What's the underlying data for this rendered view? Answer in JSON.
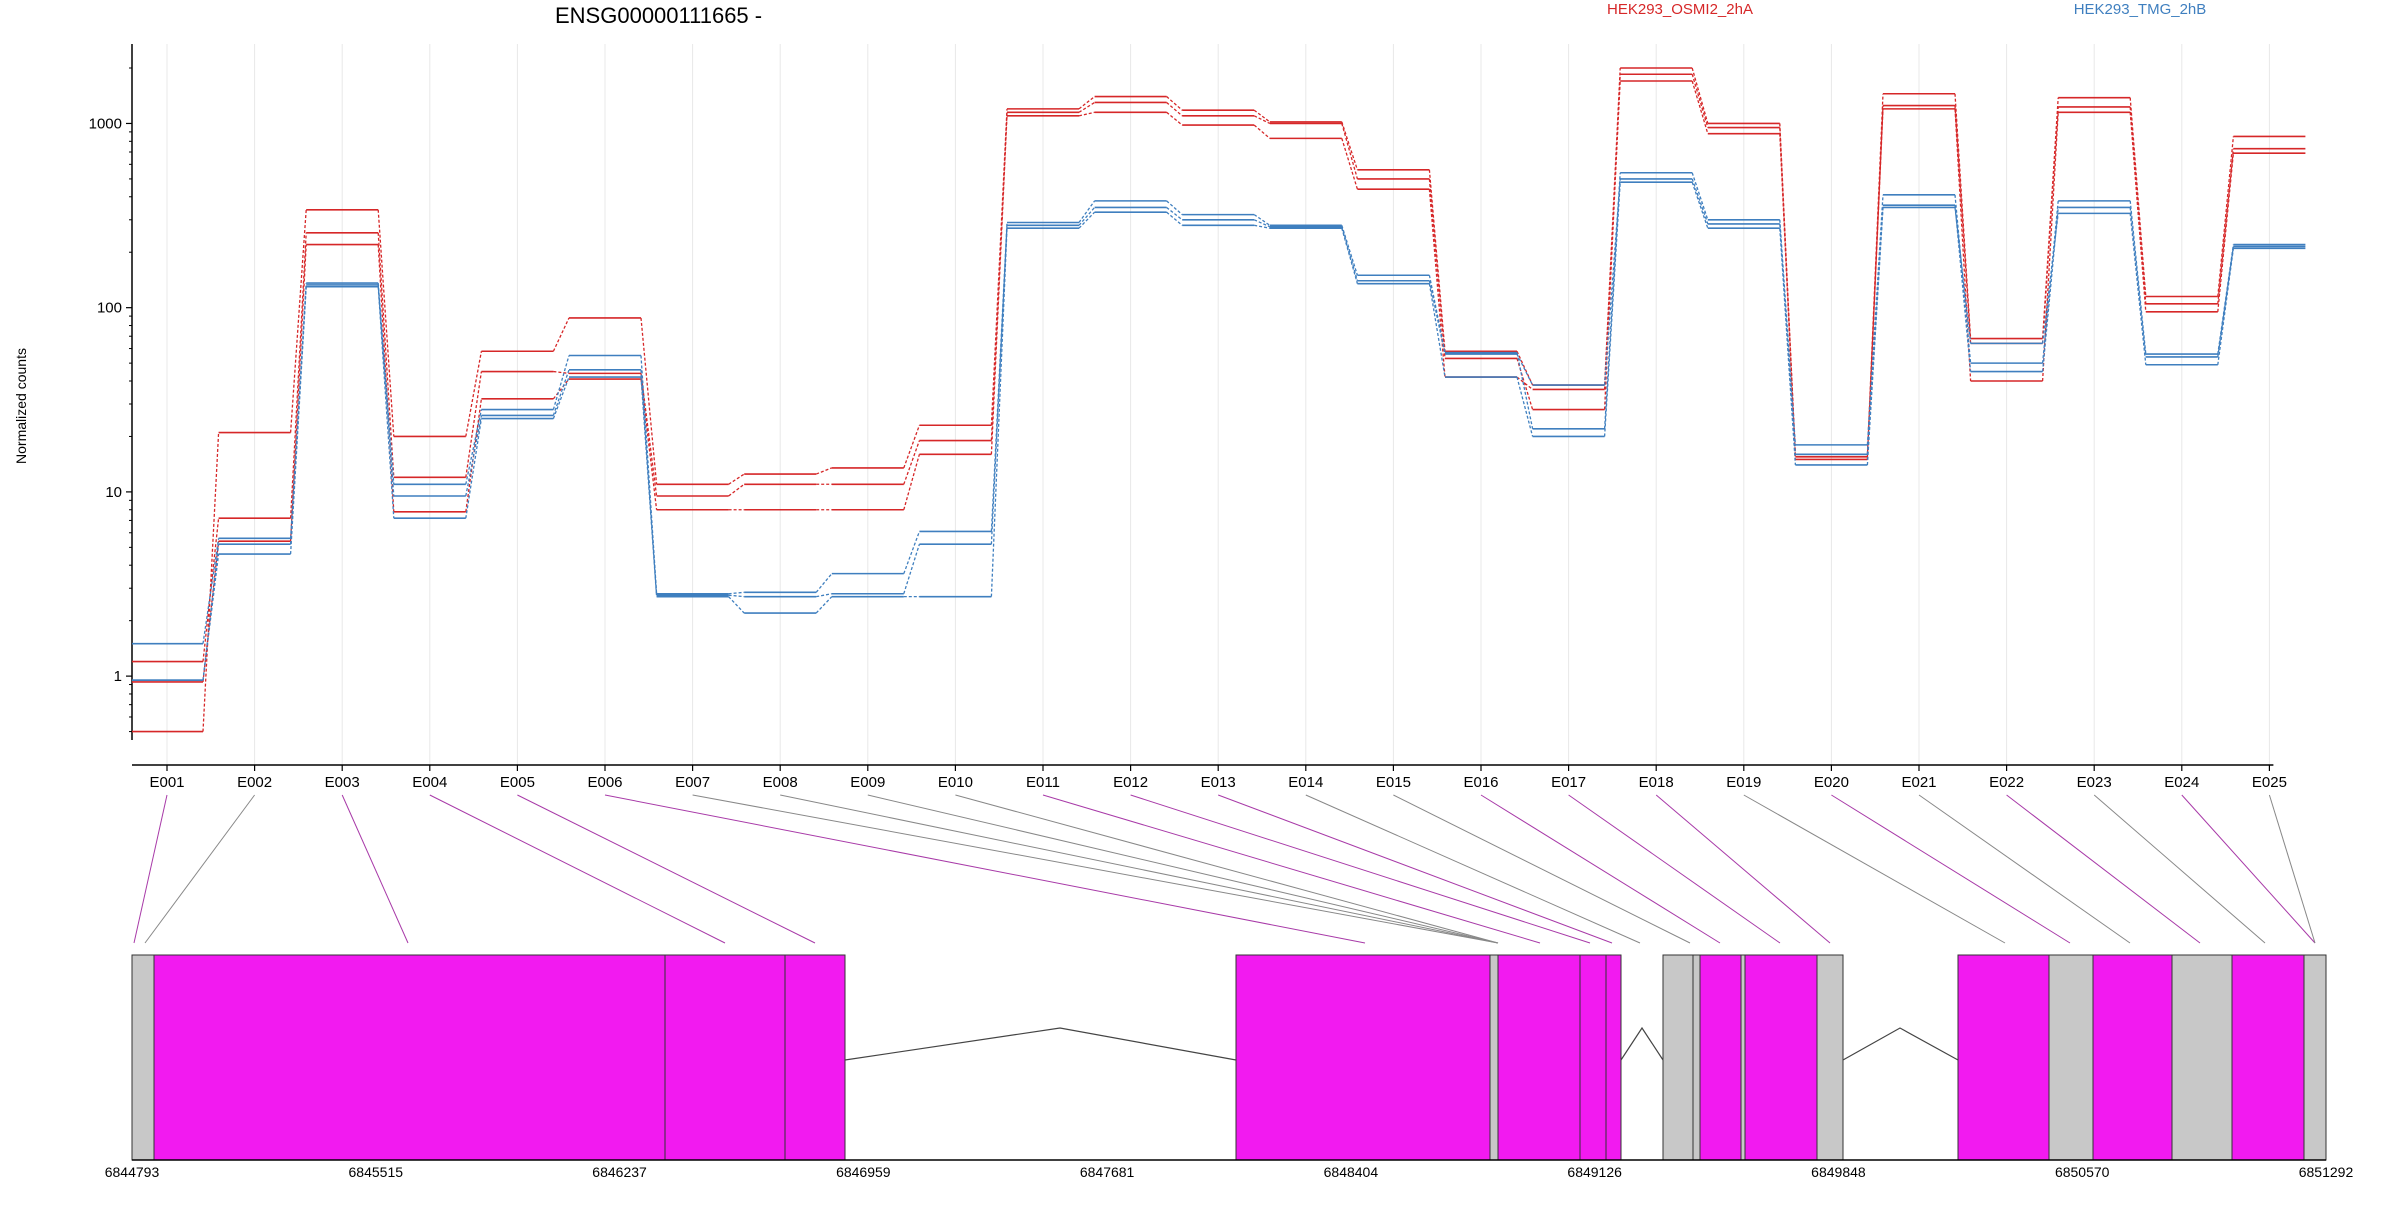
{
  "chart_data": {
    "type": "line",
    "title": "ENSG00000111665 -",
    "ylabel": "Normalized counts",
    "y_scale": "log",
    "ylim": [
      0.45,
      2700
    ],
    "y_ticks": [
      {
        "value": 1,
        "label": "1"
      },
      {
        "value": 10,
        "label": "10"
      },
      {
        "value": 100,
        "label": "100"
      },
      {
        "value": 1000,
        "label": "1000"
      }
    ],
    "categories": [
      "E001",
      "E002",
      "E003",
      "E004",
      "E005",
      "E006",
      "E007",
      "E008",
      "E009",
      "E010",
      "E011",
      "E012",
      "E013",
      "E014",
      "E015",
      "E016",
      "E017",
      "E018",
      "E019",
      "E020",
      "E021",
      "E022",
      "E023",
      "E024",
      "E025"
    ],
    "grid": true,
    "legend": [
      {
        "name": "HEK293_OSMI2_2hA",
        "color": "#d62728"
      },
      {
        "name": "HEK293_TMG_2hB",
        "color": "#3f7fbf"
      }
    ],
    "series": [
      {
        "group": "HEK293_OSMI2_2hA",
        "color": "#d62728",
        "values": [
          0.5,
          21,
          340,
          20,
          58,
          88,
          11,
          12.5,
          13.5,
          23,
          1200,
          1400,
          1180,
          1020,
          560,
          58,
          38,
          2000,
          1000,
          16,
          1450,
          68,
          1380,
          115,
          850
        ]
      },
      {
        "group": "HEK293_OSMI2_2hA",
        "color": "#d62728",
        "values": [
          1.2,
          7.2,
          255,
          12,
          45,
          44,
          9.5,
          11,
          11,
          19,
          1150,
          1300,
          1100,
          1000,
          500,
          53,
          28,
          1850,
          950,
          15.5,
          1250,
          64,
          1230,
          105,
          730
        ]
      },
      {
        "group": "HEK293_OSMI2_2hA",
        "color": "#d62728",
        "values": [
          0.93,
          5.4,
          220,
          7.8,
          32,
          41,
          8,
          8,
          8,
          16,
          1100,
          1150,
          980,
          830,
          440,
          42,
          36,
          1700,
          880,
          15,
          1200,
          40,
          1150,
          95,
          690
        ]
      },
      {
        "group": "HEK293_TMG_2hB",
        "color": "#3f7fbf",
        "values": [
          1.5,
          5.6,
          136,
          11,
          28,
          55,
          2.8,
          2.85,
          3.6,
          6.1,
          290,
          380,
          320,
          280,
          150,
          57,
          22,
          540,
          300,
          18,
          410,
          50,
          380,
          56,
          220
        ]
      },
      {
        "group": "HEK293_TMG_2hB",
        "color": "#3f7fbf",
        "values": [
          0.95,
          5.2,
          133,
          9.5,
          26,
          46,
          2.75,
          2.7,
          2.8,
          5.2,
          280,
          350,
          300,
          275,
          140,
          56,
          38,
          500,
          285,
          16,
          360,
          45,
          350,
          54,
          215
        ]
      },
      {
        "group": "HEK293_TMG_2hB",
        "color": "#3f7fbf",
        "values": [
          0.95,
          4.6,
          130,
          7.2,
          25,
          42,
          2.7,
          2.2,
          2.7,
          2.7,
          270,
          330,
          280,
          270,
          135,
          42,
          20,
          480,
          270,
          14,
          350,
          64,
          325,
          49,
          210
        ]
      }
    ],
    "gene_model": {
      "coordinate_ticks": [
        "6844793",
        "6845515",
        "6846237",
        "6846959",
        "6847681",
        "6848404",
        "6849126",
        "6849848",
        "6850570",
        "6851292"
      ],
      "segment_colors": {
        "exonic": "#f21af0",
        "other": "#c8c8c8"
      }
    }
  }
}
